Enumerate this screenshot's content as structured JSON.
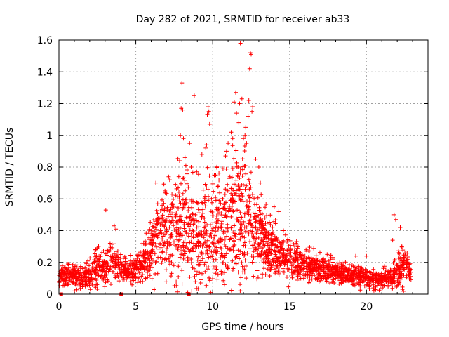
{
  "chart_data": {
    "type": "scatter",
    "title": "Day 282 of 2021, SRMTID for receiver ab33",
    "xlabel": "GPS time / hours",
    "ylabel": "SRMTID / TECUs",
    "xlim": [
      0,
      24
    ],
    "ylim": [
      0,
      1.6
    ],
    "x_ticks": [
      0,
      5,
      10,
      15,
      20
    ],
    "x_tick_labels": [
      "0",
      "5",
      "10",
      "15",
      "20"
    ],
    "y_ticks": [
      0,
      0.2,
      0.4,
      0.6,
      0.8,
      1.0,
      1.2,
      1.4,
      1.6
    ],
    "y_tick_labels": [
      "0",
      "0.2",
      "0.4",
      "0.6",
      "0.8",
      "1",
      "1.2",
      "1.4",
      "1.6"
    ],
    "grid": true,
    "marker": "+",
    "color": "#ff0000",
    "envelope": {
      "x": [
        0,
        0.5,
        1,
        1.5,
        2,
        2.5,
        3,
        3.5,
        4,
        4.5,
        5,
        5.5,
        6,
        6.5,
        7,
        7.5,
        8,
        8.5,
        9,
        9.5,
        10,
        10.5,
        11,
        11.5,
        12,
        12.5,
        13,
        13.5,
        14,
        14.5,
        15,
        15.5,
        16,
        16.5,
        17,
        17.5,
        18,
        18.5,
        19,
        19.5,
        20,
        20.5,
        21,
        21.5,
        22,
        22.5,
        22.9
      ],
      "center": [
        0.1,
        0.12,
        0.11,
        0.1,
        0.12,
        0.16,
        0.15,
        0.22,
        0.18,
        0.14,
        0.16,
        0.2,
        0.28,
        0.36,
        0.4,
        0.4,
        0.42,
        0.38,
        0.36,
        0.38,
        0.4,
        0.42,
        0.46,
        0.5,
        0.52,
        0.42,
        0.36,
        0.3,
        0.28,
        0.24,
        0.22,
        0.2,
        0.18,
        0.18,
        0.17,
        0.15,
        0.14,
        0.13,
        0.12,
        0.11,
        0.1,
        0.09,
        0.09,
        0.1,
        0.14,
        0.18,
        0.15
      ],
      "spread": [
        0.04,
        0.05,
        0.05,
        0.05,
        0.07,
        0.1,
        0.08,
        0.1,
        0.06,
        0.05,
        0.05,
        0.08,
        0.14,
        0.18,
        0.2,
        0.24,
        0.26,
        0.24,
        0.24,
        0.26,
        0.26,
        0.26,
        0.28,
        0.3,
        0.3,
        0.24,
        0.18,
        0.14,
        0.12,
        0.1,
        0.1,
        0.08,
        0.07,
        0.07,
        0.06,
        0.06,
        0.05,
        0.05,
        0.05,
        0.05,
        0.04,
        0.04,
        0.04,
        0.05,
        0.08,
        0.09,
        0.06
      ]
    },
    "outliers": [
      {
        "x": 3.05,
        "y": 0.53
      },
      {
        "x": 3.6,
        "y": 0.43
      },
      {
        "x": 3.7,
        "y": 0.41
      },
      {
        "x": 6.3,
        "y": 0.7
      },
      {
        "x": 6.9,
        "y": 0.65
      },
      {
        "x": 7.2,
        "y": 0.72
      },
      {
        "x": 7.9,
        "y": 1.0
      },
      {
        "x": 7.95,
        "y": 1.17
      },
      {
        "x": 8.0,
        "y": 1.33
      },
      {
        "x": 8.05,
        "y": 1.16
      },
      {
        "x": 8.1,
        "y": 0.98
      },
      {
        "x": 8.2,
        "y": 0.86
      },
      {
        "x": 7.85,
        "y": 0.84
      },
      {
        "x": 8.5,
        "y": 0.95
      },
      {
        "x": 8.6,
        "y": 0.8
      },
      {
        "x": 8.8,
        "y": 1.25
      },
      {
        "x": 9.3,
        "y": 0.88
      },
      {
        "x": 9.6,
        "y": 0.94
      },
      {
        "x": 9.65,
        "y": 1.13
      },
      {
        "x": 9.7,
        "y": 1.18
      },
      {
        "x": 9.75,
        "y": 1.15
      },
      {
        "x": 9.8,
        "y": 1.07
      },
      {
        "x": 9.55,
        "y": 0.92
      },
      {
        "x": 10.2,
        "y": 0.75
      },
      {
        "x": 10.9,
        "y": 0.9
      },
      {
        "x": 11.0,
        "y": 0.95
      },
      {
        "x": 11.2,
        "y": 1.02
      },
      {
        "x": 11.3,
        "y": 0.98
      },
      {
        "x": 11.4,
        "y": 1.21
      },
      {
        "x": 11.5,
        "y": 1.27
      },
      {
        "x": 11.55,
        "y": 1.14
      },
      {
        "x": 11.7,
        "y": 1.08
      },
      {
        "x": 11.75,
        "y": 1.2
      },
      {
        "x": 11.8,
        "y": 1.58
      },
      {
        "x": 11.9,
        "y": 1.23
      },
      {
        "x": 12.0,
        "y": 0.98
      },
      {
        "x": 12.1,
        "y": 1.0
      },
      {
        "x": 12.15,
        "y": 1.05
      },
      {
        "x": 12.3,
        "y": 1.12
      },
      {
        "x": 12.35,
        "y": 1.22
      },
      {
        "x": 12.4,
        "y": 1.42
      },
      {
        "x": 12.45,
        "y": 1.52
      },
      {
        "x": 12.5,
        "y": 1.51
      },
      {
        "x": 12.55,
        "y": 1.15
      },
      {
        "x": 12.6,
        "y": 1.18
      },
      {
        "x": 12.2,
        "y": 0.95
      },
      {
        "x": 12.8,
        "y": 0.85
      },
      {
        "x": 13.0,
        "y": 0.8
      },
      {
        "x": 13.1,
        "y": 0.7
      },
      {
        "x": 14.0,
        "y": 0.55
      },
      {
        "x": 14.3,
        "y": 0.52
      },
      {
        "x": 14.6,
        "y": 0.4
      },
      {
        "x": 19.3,
        "y": 0.24
      },
      {
        "x": 20.0,
        "y": 0.24
      },
      {
        "x": 21.8,
        "y": 0.5
      },
      {
        "x": 21.9,
        "y": 0.47
      },
      {
        "x": 21.7,
        "y": 0.34
      },
      {
        "x": 22.2,
        "y": 0.42
      },
      {
        "x": 22.3,
        "y": 0.3
      },
      {
        "x": 22.5,
        "y": 0.26
      }
    ],
    "data_gaps": [
      0.15,
      4.05,
      8.45
    ]
  }
}
